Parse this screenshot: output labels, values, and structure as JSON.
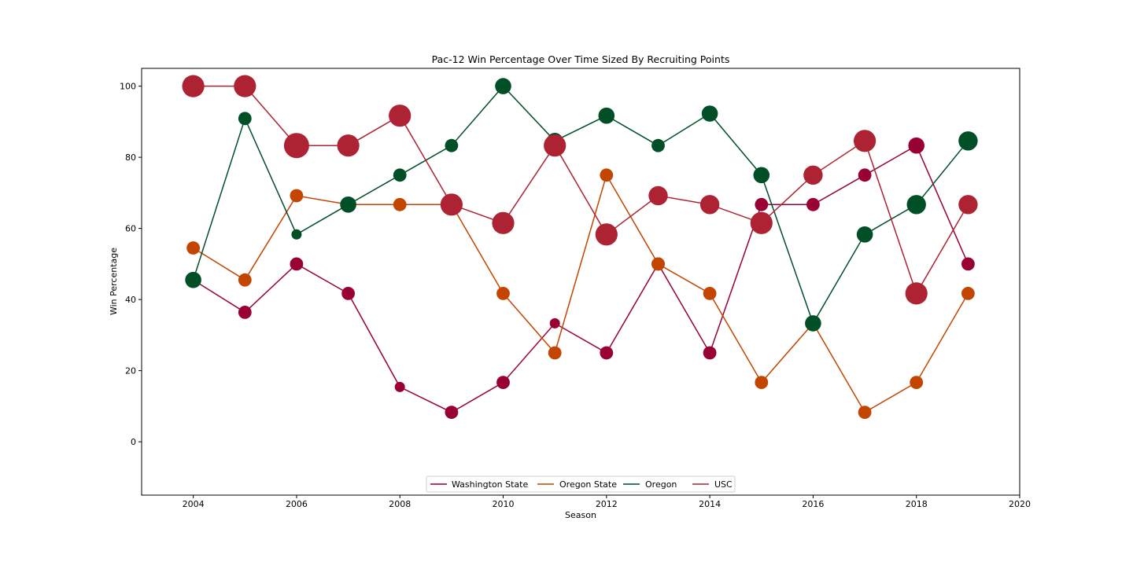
{
  "chart_data": {
    "type": "scatter",
    "title": "Pac-12 Win Percentage Over Time Sized By Recruiting Points",
    "xlabel": "Season",
    "ylabel": "Win Percentage",
    "xlim": [
      2003,
      2020
    ],
    "ylim": [
      -15,
      105
    ],
    "xticks": [
      2004,
      2006,
      2008,
      2010,
      2012,
      2014,
      2016,
      2018,
      2020
    ],
    "yticks": [
      0,
      20,
      40,
      60,
      80,
      100
    ],
    "legend_position": "lower center",
    "series": [
      {
        "name": "Washington State",
        "color": "#990033",
        "x": [
          2004,
          2005,
          2006,
          2007,
          2008,
          2009,
          2010,
          2011,
          2012,
          2013,
          2014,
          2015,
          2016,
          2017,
          2018,
          2019
        ],
        "y": [
          45.5,
          36.4,
          50.0,
          41.7,
          15.4,
          8.3,
          16.7,
          33.3,
          25.0,
          50.0,
          25.0,
          66.7,
          66.7,
          75.0,
          83.3,
          50.0
        ],
        "marker_size": [
          1,
          2,
          2,
          2,
          1,
          2,
          2,
          1,
          2,
          2,
          2,
          2,
          2,
          2,
          3,
          2
        ]
      },
      {
        "name": "Oregon State",
        "color": "#C34500",
        "x": [
          2004,
          2005,
          2006,
          2007,
          2008,
          2009,
          2010,
          2011,
          2012,
          2013,
          2014,
          2015,
          2016,
          2017,
          2018,
          2019
        ],
        "y": [
          54.5,
          45.5,
          69.2,
          66.7,
          66.7,
          66.7,
          41.7,
          25.0,
          75.0,
          50.0,
          41.7,
          16.7,
          33.3,
          8.3,
          16.7,
          41.7
        ],
        "marker_size": [
          2,
          2,
          2,
          1,
          2,
          1,
          2,
          2,
          2,
          2,
          2,
          2,
          1,
          2,
          2,
          2
        ]
      },
      {
        "name": "Oregon",
        "color": "#004F27",
        "x": [
          2004,
          2005,
          2006,
          2007,
          2008,
          2009,
          2010,
          2011,
          2012,
          2013,
          2014,
          2015,
          2016,
          2017,
          2018,
          2019
        ],
        "y": [
          45.5,
          90.9,
          58.3,
          66.7,
          75.0,
          83.3,
          100.0,
          84.6,
          91.7,
          83.3,
          92.3,
          75.0,
          33.3,
          58.3,
          66.7,
          84.6
        ],
        "marker_size": [
          3,
          2,
          1,
          3,
          2,
          2,
          3,
          3,
          3,
          2,
          3,
          3,
          3,
          3,
          4,
          4
        ]
      },
      {
        "name": "USC",
        "color": "#AE2333",
        "x": [
          2004,
          2005,
          2006,
          2007,
          2008,
          2009,
          2010,
          2011,
          2012,
          2013,
          2014,
          2015,
          2016,
          2017,
          2018,
          2019
        ],
        "y": [
          100.0,
          100.0,
          83.3,
          83.3,
          91.7,
          66.7,
          61.5,
          83.3,
          58.3,
          69.2,
          66.7,
          61.5,
          75.0,
          84.6,
          41.7,
          66.7
        ],
        "marker_size": [
          5,
          5,
          6,
          5,
          5,
          5,
          5,
          5,
          5,
          4,
          4,
          5,
          4,
          5,
          5,
          4
        ]
      }
    ]
  }
}
